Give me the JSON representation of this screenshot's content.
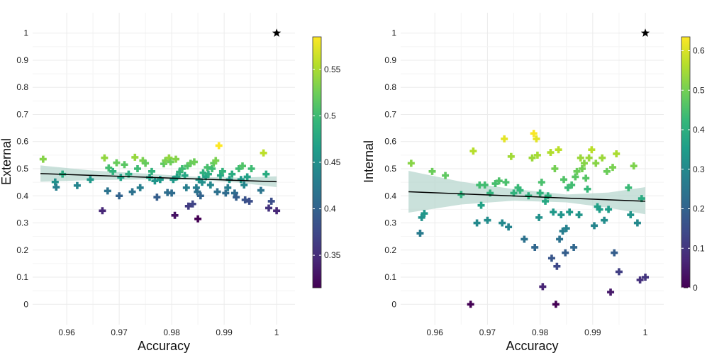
{
  "colors": {
    "ribbon": "#b4d4cc",
    "trend": "#000000",
    "grid": "#ebebeb",
    "star": "#000000",
    "viridis": [
      "#440154",
      "#482878",
      "#3e4989",
      "#31688e",
      "#26828e",
      "#1f9e89",
      "#35b779",
      "#6ece58",
      "#b5de2b",
      "#fde725"
    ]
  },
  "chart_data": [
    {
      "type": "scatter",
      "marker": "plus",
      "xlabel": "Accuracy",
      "ylabel": "External",
      "xlim": [
        0.9535,
        1.0035
      ],
      "ylim": [
        -0.075,
        1.075
      ],
      "x_ticks": [
        0.96,
        0.97,
        0.98,
        0.99,
        1
      ],
      "x_tick_labels": [
        "0.96",
        "0.97",
        "0.98",
        "0.99",
        "1"
      ],
      "y_ticks": [
        0,
        0.1,
        0.2,
        0.3,
        0.4,
        0.5,
        0.6,
        0.7,
        0.8,
        0.9,
        1
      ],
      "y_tick_labels": [
        "0",
        "0.1",
        "0.2",
        "0.3",
        "0.4",
        "0.5",
        "0.6",
        "0.7",
        "0.8",
        "0.9",
        "1"
      ],
      "colorbar": {
        "range": [
          0.315,
          0.585
        ],
        "ticks": [
          0.35,
          0.4,
          0.45,
          0.5,
          0.55
        ],
        "tick_labels": [
          "0.35",
          "0.4",
          "0.45",
          "0.5",
          "0.55"
        ]
      },
      "trend": {
        "x": [
          0.955,
          1.0
        ],
        "y": [
          0.482,
          0.452
        ]
      },
      "ribbon": {
        "x": [
          0.955,
          0.965,
          0.975,
          0.985,
          0.993,
          1.0
        ],
        "lower": [
          0.452,
          0.458,
          0.46,
          0.459,
          0.448,
          0.432
        ],
        "upper": [
          0.512,
          0.493,
          0.482,
          0.47,
          0.467,
          0.472
        ]
      },
      "reference_point": {
        "x": 1.0,
        "y": 1.0,
        "marker": "star"
      },
      "points": [
        [
          0.9555,
          0.535
        ],
        [
          0.9578,
          0.451
        ],
        [
          0.958,
          0.432
        ],
        [
          0.9592,
          0.48
        ],
        [
          0.962,
          0.438
        ],
        [
          0.9645,
          0.46
        ],
        [
          0.9668,
          0.345
        ],
        [
          0.9672,
          0.54
        ],
        [
          0.9678,
          0.418
        ],
        [
          0.968,
          0.503
        ],
        [
          0.9688,
          0.49
        ],
        [
          0.9695,
          0.522
        ],
        [
          0.97,
          0.4
        ],
        [
          0.9703,
          0.468
        ],
        [
          0.971,
          0.515
        ],
        [
          0.9718,
          0.48
        ],
        [
          0.9725,
          0.415
        ],
        [
          0.973,
          0.542
        ],
        [
          0.9735,
          0.5
        ],
        [
          0.974,
          0.43
        ],
        [
          0.9745,
          0.53
        ],
        [
          0.975,
          0.52
        ],
        [
          0.9758,
          0.468
        ],
        [
          0.9762,
          0.49
        ],
        [
          0.9768,
          0.455
        ],
        [
          0.9772,
          0.395
        ],
        [
          0.9778,
          0.46
        ],
        [
          0.9785,
          0.518
        ],
        [
          0.9788,
          0.53
        ],
        [
          0.9792,
          0.412
        ],
        [
          0.9795,
          0.54
        ],
        [
          0.9798,
          0.525
        ],
        [
          0.98,
          0.41
        ],
        [
          0.9803,
          0.46
        ],
        [
          0.9806,
          0.328
        ],
        [
          0.9808,
          0.535
        ],
        [
          0.981,
          0.47
        ],
        [
          0.9815,
          0.488
        ],
        [
          0.982,
          0.5
        ],
        [
          0.9825,
          0.475
        ],
        [
          0.9828,
          0.43
        ],
        [
          0.983,
          0.51
        ],
        [
          0.9832,
          0.362
        ],
        [
          0.9836,
          0.52
        ],
        [
          0.984,
          0.37
        ],
        [
          0.9843,
          0.525
        ],
        [
          0.9847,
          0.43
        ],
        [
          0.9849,
          0.415
        ],
        [
          0.985,
          0.315
        ],
        [
          0.9852,
          0.46
        ],
        [
          0.9855,
          0.4
        ],
        [
          0.9858,
          0.45
        ],
        [
          0.986,
          0.485
        ],
        [
          0.9865,
          0.47
        ],
        [
          0.9868,
          0.505
        ],
        [
          0.987,
          0.48
        ],
        [
          0.9874,
          0.44
        ],
        [
          0.9877,
          0.5
        ],
        [
          0.988,
          0.52
        ],
        [
          0.9884,
          0.53
        ],
        [
          0.9887,
          0.415
        ],
        [
          0.989,
          0.585
        ],
        [
          0.9893,
          0.475
        ],
        [
          0.9897,
          0.49
        ],
        [
          0.9903,
          0.41
        ],
        [
          0.9907,
          0.43
        ],
        [
          0.991,
          0.46
        ],
        [
          0.9915,
          0.48
        ],
        [
          0.992,
          0.41
        ],
        [
          0.9923,
          0.395
        ],
        [
          0.9928,
          0.5
        ],
        [
          0.9932,
          0.46
        ],
        [
          0.9935,
          0.51
        ],
        [
          0.9938,
          0.44
        ],
        [
          0.994,
          0.385
        ],
        [
          0.9944,
          0.47
        ],
        [
          0.9948,
          0.38
        ],
        [
          0.9952,
          0.5
        ],
        [
          0.997,
          0.42
        ],
        [
          0.9975,
          0.558
        ],
        [
          0.998,
          0.48
        ],
        [
          0.9985,
          0.355
        ],
        [
          0.999,
          0.38
        ],
        [
          1.0,
          0.345
        ]
      ]
    },
    {
      "type": "scatter",
      "marker": "plus",
      "xlabel": "Accuracy",
      "ylabel": "Internal",
      "xlim": [
        0.9535,
        1.0035
      ],
      "ylim": [
        -0.075,
        1.075
      ],
      "x_ticks": [
        0.96,
        0.97,
        0.98,
        0.99,
        1
      ],
      "x_tick_labels": [
        "0.96",
        "0.97",
        "0.98",
        "0.99",
        "1"
      ],
      "y_ticks": [
        0,
        0.1,
        0.2,
        0.3,
        0.4,
        0.5,
        0.6,
        0.7,
        0.8,
        0.9,
        1
      ],
      "y_tick_labels": [
        "0",
        "0.1",
        "0.2",
        "0.3",
        "0.4",
        "0.5",
        "0.6",
        "0.7",
        "0.8",
        "0.9",
        "1"
      ],
      "colorbar": {
        "range": [
          0,
          0.635
        ],
        "ticks": [
          0,
          0.1,
          0.2,
          0.3,
          0.4,
          0.5,
          0.6
        ],
        "tick_labels": [
          "0",
          "0.1",
          "0.2",
          "0.3",
          "0.4",
          "0.5",
          "0.6"
        ]
      },
      "trend": {
        "x": [
          0.955,
          1.0
        ],
        "y": [
          0.415,
          0.38
        ]
      },
      "ribbon": {
        "x": [
          0.955,
          0.965,
          0.975,
          0.985,
          0.993,
          1.0
        ],
        "lower": [
          0.338,
          0.368,
          0.382,
          0.376,
          0.356,
          0.332
        ],
        "upper": [
          0.492,
          0.452,
          0.425,
          0.405,
          0.412,
          0.432
        ]
      },
      "reference_point": {
        "x": 1.0,
        "y": 1.0,
        "marker": "star"
      },
      "points": [
        [
          0.9555,
          0.52
        ],
        [
          0.9572,
          0.262
        ],
        [
          0.9575,
          0.32
        ],
        [
          0.958,
          0.335
        ],
        [
          0.9595,
          0.49
        ],
        [
          0.962,
          0.475
        ],
        [
          0.965,
          0.405
        ],
        [
          0.9668,
          0.0
        ],
        [
          0.9673,
          0.565
        ],
        [
          0.968,
          0.3
        ],
        [
          0.9685,
          0.44
        ],
        [
          0.9688,
          0.365
        ],
        [
          0.9695,
          0.44
        ],
        [
          0.97,
          0.31
        ],
        [
          0.9705,
          0.41
        ],
        [
          0.9715,
          0.445
        ],
        [
          0.9722,
          0.455
        ],
        [
          0.9728,
          0.3
        ],
        [
          0.9732,
          0.61
        ],
        [
          0.9735,
          0.45
        ],
        [
          0.974,
          0.285
        ],
        [
          0.9745,
          0.545
        ],
        [
          0.975,
          0.41
        ],
        [
          0.9758,
          0.43
        ],
        [
          0.9762,
          0.42
        ],
        [
          0.977,
          0.24
        ],
        [
          0.9778,
          0.4
        ],
        [
          0.9785,
          0.54
        ],
        [
          0.9788,
          0.63
        ],
        [
          0.979,
          0.21
        ],
        [
          0.9793,
          0.61
        ],
        [
          0.9795,
          0.55
        ],
        [
          0.9798,
          0.32
        ],
        [
          0.98,
          0.41
        ],
        [
          0.9803,
          0.45
        ],
        [
          0.9805,
          0.065
        ],
        [
          0.981,
          0.38
        ],
        [
          0.9815,
          0.4
        ],
        [
          0.982,
          0.56
        ],
        [
          0.9822,
          0.17
        ],
        [
          0.9825,
          0.34
        ],
        [
          0.9828,
          0.5
        ],
        [
          0.983,
          0.0
        ],
        [
          0.9832,
          0.14
        ],
        [
          0.9835,
          0.57
        ],
        [
          0.9837,
          0.24
        ],
        [
          0.984,
          0.33
        ],
        [
          0.9843,
          0.27
        ],
        [
          0.9845,
          0.46
        ],
        [
          0.9848,
          0.19
        ],
        [
          0.985,
          0.28
        ],
        [
          0.9853,
          0.43
        ],
        [
          0.9856,
          0.34
        ],
        [
          0.986,
          0.44
        ],
        [
          0.9864,
          0.21
        ],
        [
          0.9867,
          0.47
        ],
        [
          0.987,
          0.49
        ],
        [
          0.9874,
          0.33
        ],
        [
          0.9877,
          0.54
        ],
        [
          0.988,
          0.5
        ],
        [
          0.9884,
          0.52
        ],
        [
          0.9887,
          0.465
        ],
        [
          0.989,
          0.425
        ],
        [
          0.9893,
          0.54
        ],
        [
          0.9898,
          0.57
        ],
        [
          0.9903,
          0.29
        ],
        [
          0.9906,
          0.52
        ],
        [
          0.9909,
          0.36
        ],
        [
          0.9913,
          0.35
        ],
        [
          0.9918,
          0.54
        ],
        [
          0.9922,
          0.31
        ],
        [
          0.9927,
          0.49
        ],
        [
          0.993,
          0.35
        ],
        [
          0.9934,
          0.045
        ],
        [
          0.9938,
          0.505
        ],
        [
          0.9941,
          0.19
        ],
        [
          0.9945,
          0.555
        ],
        [
          0.995,
          0.12
        ],
        [
          0.9968,
          0.43
        ],
        [
          0.9972,
          0.33
        ],
        [
          0.9978,
          0.51
        ],
        [
          0.9985,
          0.3
        ],
        [
          0.999,
          0.09
        ],
        [
          0.9993,
          0.39
        ],
        [
          1.0,
          0.1
        ]
      ]
    }
  ]
}
